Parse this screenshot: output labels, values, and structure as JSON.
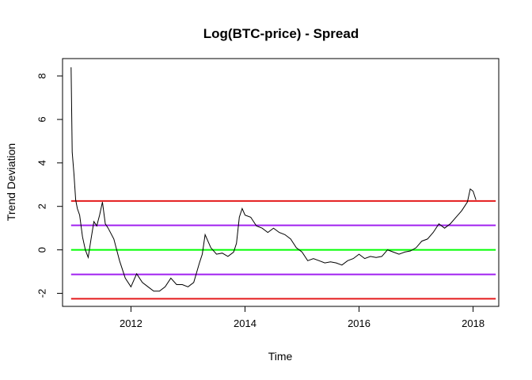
{
  "chart_data": {
    "type": "line",
    "title": "Log(BTC-price) - Spread",
    "xlabel": "Time",
    "ylabel": "Trend Deviation",
    "xlim": [
      2010.8,
      2018.45
    ],
    "ylim": [
      -2.6,
      8.8
    ],
    "x_ticks": [
      2012,
      2014,
      2016,
      2018
    ],
    "x_tick_labels": [
      "2012",
      "2014",
      "2016",
      "2018"
    ],
    "y_ticks": [
      -2,
      0,
      2,
      4,
      6,
      8
    ],
    "y_tick_labels": [
      "-2",
      "0",
      "2",
      "4",
      "6",
      "8"
    ],
    "grid": false,
    "series": [
      {
        "style": "line",
        "color": "#000000",
        "x": [
          2010.95,
          2010.97,
          2011.0,
          2011.03,
          2011.06,
          2011.1,
          2011.15,
          2011.2,
          2011.25,
          2011.3,
          2011.35,
          2011.4,
          2011.45,
          2011.5,
          2011.55,
          2011.6,
          2011.7,
          2011.8,
          2011.9,
          2012.0,
          2012.1,
          2012.2,
          2012.3,
          2012.4,
          2012.5,
          2012.6,
          2012.7,
          2012.8,
          2012.9,
          2013.0,
          2013.1,
          2013.2,
          2013.25,
          2013.3,
          2013.4,
          2013.5,
          2013.6,
          2013.7,
          2013.8,
          2013.85,
          2013.9,
          2013.95,
          2014.0,
          2014.1,
          2014.2,
          2014.3,
          2014.4,
          2014.5,
          2014.6,
          2014.7,
          2014.8,
          2014.9,
          2015.0,
          2015.1,
          2015.2,
          2015.3,
          2015.4,
          2015.5,
          2015.6,
          2015.7,
          2015.8,
          2015.9,
          2016.0,
          2016.1,
          2016.2,
          2016.3,
          2016.4,
          2016.5,
          2016.6,
          2016.7,
          2016.8,
          2016.9,
          2017.0,
          2017.1,
          2017.2,
          2017.3,
          2017.4,
          2017.5,
          2017.6,
          2017.7,
          2017.8,
          2017.9,
          2017.95,
          2018.0,
          2018.05
        ],
        "y": [
          8.4,
          4.5,
          3.5,
          2.3,
          1.9,
          1.6,
          0.6,
          0.0,
          -0.35,
          0.5,
          1.3,
          1.1,
          1.6,
          2.2,
          1.2,
          1.0,
          0.5,
          -0.5,
          -1.3,
          -1.7,
          -1.1,
          -1.5,
          -1.7,
          -1.9,
          -1.9,
          -1.7,
          -1.3,
          -1.6,
          -1.6,
          -1.7,
          -1.5,
          -0.6,
          -0.2,
          0.7,
          0.1,
          -0.2,
          -0.15,
          -0.3,
          -0.1,
          0.3,
          1.5,
          1.9,
          1.6,
          1.5,
          1.1,
          1.0,
          0.8,
          1.0,
          0.8,
          0.7,
          0.5,
          0.1,
          -0.1,
          -0.5,
          -0.4,
          -0.5,
          -0.6,
          -0.55,
          -0.6,
          -0.7,
          -0.5,
          -0.4,
          -0.2,
          -0.4,
          -0.3,
          -0.35,
          -0.3,
          0.0,
          -0.1,
          -0.2,
          -0.1,
          -0.05,
          0.1,
          0.4,
          0.5,
          0.8,
          1.2,
          1.0,
          1.2,
          1.5,
          1.8,
          2.2,
          2.8,
          2.7,
          2.3
        ]
      },
      {
        "style": "hline",
        "y": 2.25,
        "color": "#E41A1C"
      },
      {
        "style": "hline",
        "y": 1.13,
        "color": "#A020F0"
      },
      {
        "style": "hline",
        "y": 0.0,
        "color": "#00FF00"
      },
      {
        "style": "hline",
        "y": -1.13,
        "color": "#A020F0"
      },
      {
        "style": "hline",
        "y": -2.25,
        "color": "#E41A1C"
      }
    ]
  }
}
